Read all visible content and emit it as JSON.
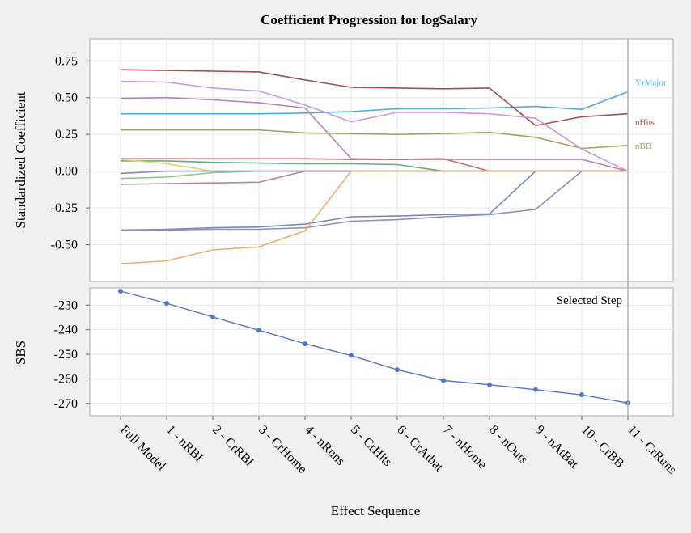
{
  "chart_data": {
    "title": "Coefficient Progression for logSalary",
    "xlabel": "Effect Sequence",
    "categories": [
      "Full Model",
      "1 - nRBI",
      "2 - CrRBI",
      "3 - CrHome",
      "4 - nRuns",
      "5 - CrHits",
      "6 - CrAtbat",
      "7 - nHome",
      "8 - nOuts",
      "9 - nAtBat",
      "10 - CrBB",
      "11 - CrRuns"
    ],
    "charts": [
      {
        "type": "line",
        "ylabel": "Standardized Coefficient",
        "ylim": [
          -0.75,
          0.9
        ],
        "yticks": [
          "0.75",
          "0.50",
          "0.25",
          "0.00",
          "-0.25",
          "-0.50"
        ],
        "yticks_values": [
          0.75,
          0.5,
          0.25,
          0,
          -0.25,
          -0.5
        ],
        "series": [
          {
            "name": "YrMajor",
            "color": "#55aadd",
            "values": [
              0.39,
              0.39,
              0.39,
              0.39,
              0.395,
              0.405,
              0.425,
              0.425,
              0.43,
              0.44,
              0.42,
              0.54
            ]
          },
          {
            "name": "nHits",
            "color": "#a05050",
            "values": [
              0.69,
              0.685,
              0.68,
              0.675,
              0.62,
              0.57,
              0.565,
              0.56,
              0.565,
              0.31,
              0.37,
              0.39
            ]
          },
          {
            "name": "nBB",
            "color": "#99aa66",
            "values": [
              0.28,
              0.28,
              0.28,
              0.28,
              0.26,
              0.255,
              0.25,
              0.255,
              0.265,
              0.23,
              0.155,
              0.175
            ]
          },
          {
            "color": "#cc99dd",
            "values": [
              0.61,
              0.605,
              0.565,
              0.545,
              0.45,
              0.335,
              0.4,
              0.4,
              0.39,
              0.36,
              0.15,
              0
            ]
          },
          {
            "color": "#c080b0",
            "values": [
              0.495,
              0.5,
              0.485,
              0.465,
              0.43,
              0.085,
              0.08,
              0.08,
              0.08,
              0.08,
              0.08,
              0
            ]
          },
          {
            "color": "#c07070",
            "values": [
              0.085,
              0.085,
              0.085,
              0.085,
              0.085,
              0.08,
              0.08,
              0.085,
              0,
              0,
              0,
              0
            ]
          },
          {
            "color": "#66aa88",
            "values": [
              0.07,
              0.07,
              0.06,
              0.055,
              0.05,
              0.05,
              0.045,
              0,
              0,
              0,
              0,
              0
            ]
          },
          {
            "color": "#dddd66",
            "values": [
              0.08,
              0.05,
              0,
              0,
              0,
              0,
              0,
              0,
              0,
              0,
              0,
              0
            ]
          },
          {
            "color": "#88cc88",
            "values": [
              -0.05,
              -0.04,
              -0.01,
              0,
              0,
              0,
              0,
              0,
              0,
              0,
              0,
              0
            ]
          },
          {
            "color": "#b58aa0",
            "values": [
              -0.09,
              -0.085,
              -0.08,
              -0.075,
              0,
              0,
              0,
              0,
              0,
              0,
              0,
              0
            ]
          },
          {
            "color": "#8888cc",
            "values": [
              -0.015,
              0,
              0,
              0,
              0,
              0,
              0,
              0,
              0,
              0,
              0,
              0
            ]
          },
          {
            "color": "#7788bb",
            "values": [
              -0.4,
              -0.395,
              -0.385,
              -0.38,
              -0.36,
              -0.31,
              -0.305,
              -0.295,
              -0.29,
              0,
              0,
              0
            ]
          },
          {
            "color": "#9090b8",
            "values": [
              -0.4,
              -0.4,
              -0.395,
              -0.395,
              -0.385,
              -0.34,
              -0.33,
              -0.31,
              -0.295,
              -0.26,
              0,
              0
            ]
          },
          {
            "color": "#e8b070",
            "values": [
              -0.63,
              -0.61,
              -0.535,
              -0.515,
              -0.405,
              0,
              0,
              0,
              0,
              0,
              0,
              0
            ]
          }
        ]
      },
      {
        "type": "line",
        "ylabel": "SBS",
        "ylim": [
          -275,
          -223
        ],
        "yticks": [
          "-230",
          "-240",
          "-250",
          "-260",
          "-270"
        ],
        "yticks_values": [
          -230,
          -240,
          -250,
          -260,
          -270
        ],
        "series": [
          {
            "color": "#5577bb",
            "values": [
              -224.3,
              -229.3,
              -234.8,
              -240.2,
              -245.7,
              -250.5,
              -256.3,
              -260.7,
              -262.4,
              -264.4,
              -266.5,
              -269.8
            ]
          }
        ],
        "annotation": "Selected Step",
        "selected_index": 11
      }
    ]
  }
}
